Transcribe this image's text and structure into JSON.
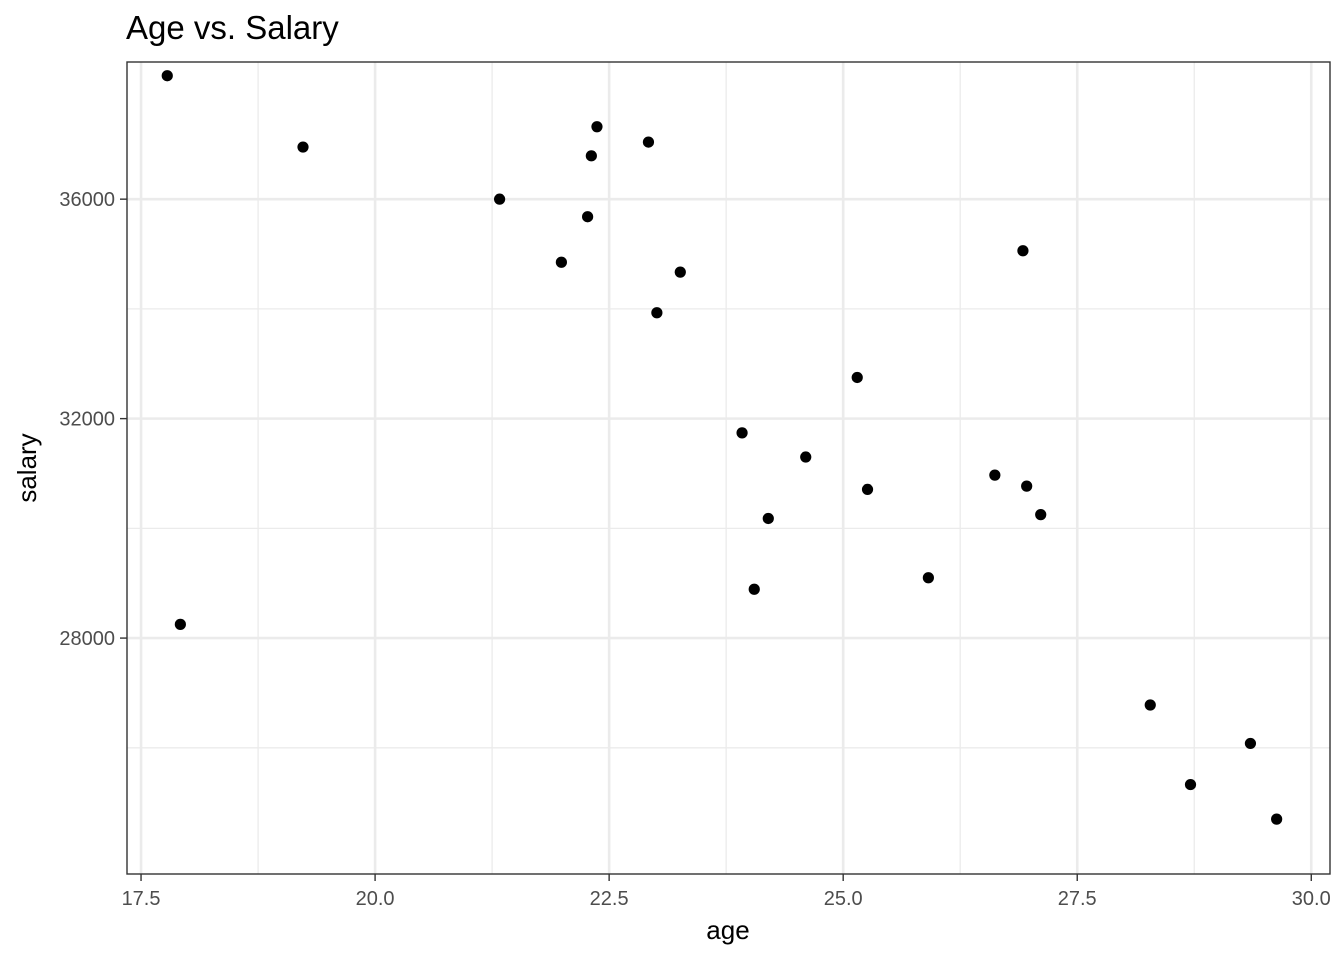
{
  "chart_data": {
    "type": "scatter",
    "title": "Age vs. Salary",
    "xlabel": "age",
    "ylabel": "salary",
    "xlim": [
      17.35,
      30.2
    ],
    "ylim": [
      23700,
      38500
    ],
    "x_major_ticks": [
      17.5,
      20.0,
      22.5,
      25.0,
      27.5,
      30.0
    ],
    "x_minor_ticks": [
      18.75,
      21.25,
      23.75,
      26.25,
      28.75
    ],
    "y_major_ticks": [
      28000,
      32000,
      36000
    ],
    "y_minor_ticks": [
      26000,
      30000,
      34000
    ],
    "x_tick_labels": [
      "17.5",
      "20.0",
      "22.5",
      "25.0",
      "27.5",
      "30.0"
    ],
    "y_tick_labels": [
      "28000",
      "32000",
      "36000"
    ],
    "grid": true,
    "theme": "bw",
    "point_color": "#000000",
    "points": [
      {
        "x": 17.78,
        "y": 38250
      },
      {
        "x": 17.92,
        "y": 28250
      },
      {
        "x": 19.23,
        "y": 36950
      },
      {
        "x": 21.33,
        "y": 36000
      },
      {
        "x": 21.99,
        "y": 34850
      },
      {
        "x": 22.27,
        "y": 35680
      },
      {
        "x": 22.31,
        "y": 36790
      },
      {
        "x": 22.37,
        "y": 37320
      },
      {
        "x": 22.92,
        "y": 37040
      },
      {
        "x": 23.01,
        "y": 33930
      },
      {
        "x": 23.26,
        "y": 34670
      },
      {
        "x": 23.92,
        "y": 31740
      },
      {
        "x": 24.05,
        "y": 28890
      },
      {
        "x": 24.2,
        "y": 30180
      },
      {
        "x": 24.6,
        "y": 31300
      },
      {
        "x": 25.15,
        "y": 32750
      },
      {
        "x": 25.26,
        "y": 30710
      },
      {
        "x": 25.91,
        "y": 29100
      },
      {
        "x": 26.62,
        "y": 30970
      },
      {
        "x": 26.92,
        "y": 35060
      },
      {
        "x": 26.96,
        "y": 30770
      },
      {
        "x": 27.11,
        "y": 30250
      },
      {
        "x": 28.28,
        "y": 26780
      },
      {
        "x": 28.71,
        "y": 25330
      },
      {
        "x": 29.35,
        "y": 26080
      },
      {
        "x": 29.63,
        "y": 24700
      }
    ]
  }
}
